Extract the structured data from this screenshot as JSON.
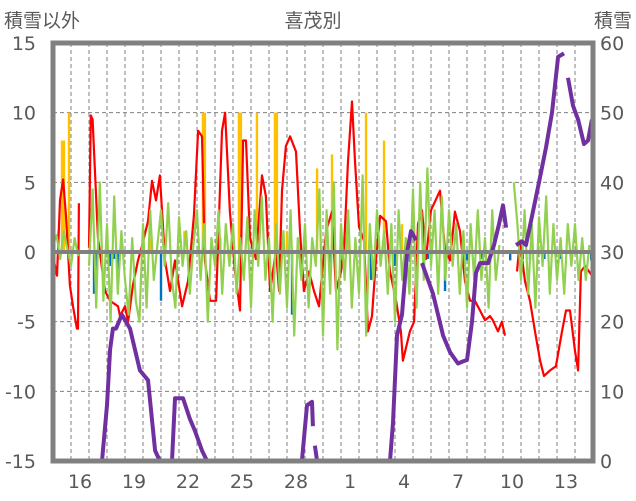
{
  "chart_data": {
    "type": "line",
    "title": "喜茂別",
    "ylabel_left": "積雪以外",
    "ylabel_right": "積雪",
    "ylim_left": [
      -15,
      15
    ],
    "ylim_right": [
      0,
      60
    ],
    "xlim_days": [
      0,
      30
    ],
    "yticks_left": [
      -15,
      -10,
      -5,
      0,
      5,
      10,
      15
    ],
    "yticks_right": [
      0,
      10,
      20,
      30,
      40,
      50,
      60
    ],
    "xtick_labels": [
      {
        "day": 1.5,
        "label": "16"
      },
      {
        "day": 4.5,
        "label": "19"
      },
      {
        "day": 7.5,
        "label": "22"
      },
      {
        "day": 10.5,
        "label": "25"
      },
      {
        "day": 13.5,
        "label": "28"
      },
      {
        "day": 16.5,
        "label": "1"
      },
      {
        "day": 19.5,
        "label": "4"
      },
      {
        "day": 22.5,
        "label": "7"
      },
      {
        "day": 25.5,
        "label": "10"
      },
      {
        "day": 28.5,
        "label": "13"
      }
    ],
    "grid": true,
    "colors": {
      "red": "#ff0000",
      "green": "#92d050",
      "purple": "#7030a0",
      "orange": "#ffc000",
      "blue": "#0070c0",
      "axis": "#808080",
      "text": "#595959"
    },
    "series": [
      {
        "name": "red",
        "axis": "left",
        "color": "#ff0000",
        "points": [
          [
            0,
            -0.3
          ],
          [
            0.22,
            -1.7
          ],
          [
            0.39,
            3.7
          ],
          [
            0.56,
            5.2
          ],
          [
            0.72,
            2.6
          ],
          [
            0.94,
            -2.4
          ],
          [
            1.11,
            -3.9
          ],
          [
            1.33,
            -5.5
          ],
          [
            1.39,
            -5.5
          ],
          [
            1.44,
            3.5
          ],
          [
            1.5,
            null
          ],
          [
            2.0,
            0.3
          ],
          [
            2.1,
            9.8
          ],
          [
            2.2,
            9.5
          ],
          [
            2.5,
            1.0
          ],
          [
            2.89,
            -2.8
          ],
          [
            3.17,
            -3.5
          ],
          [
            3.61,
            -3.9
          ],
          [
            3.72,
            -4.6
          ],
          [
            4.0,
            -3.9
          ],
          [
            4.17,
            -5.0
          ],
          [
            4.44,
            -2.4
          ],
          [
            4.72,
            -0.6
          ],
          [
            4.94,
            0.4
          ],
          [
            5.28,
            2.2
          ],
          [
            5.5,
            5.1
          ],
          [
            5.72,
            3.7
          ],
          [
            5.94,
            5.5
          ],
          [
            6.22,
            -0.6
          ],
          [
            6.5,
            -2.8
          ],
          [
            6.78,
            -0.6
          ],
          [
            7.17,
            -3.9
          ],
          [
            7.5,
            -2.1
          ],
          [
            7.83,
            2.6
          ],
          [
            8.06,
            8.7
          ],
          [
            8.28,
            8.3
          ],
          [
            8.44,
            -0.6
          ],
          [
            8.72,
            -3.5
          ],
          [
            9.06,
            -3.5
          ],
          [
            9.39,
            8.7
          ],
          [
            9.56,
            10.0
          ],
          [
            9.83,
            2.9
          ],
          [
            10.11,
            -1.4
          ],
          [
            10.39,
            -4.2
          ],
          [
            10.56,
            8.0
          ],
          [
            10.72,
            8.0
          ],
          [
            10.94,
            1.1
          ],
          [
            11.06,
            0.4
          ],
          [
            11.28,
            -0.5
          ],
          [
            11.61,
            5.5
          ],
          [
            11.83,
            4.0
          ],
          [
            12.06,
            -2.8
          ],
          [
            12.39,
            0.1
          ],
          [
            12.56,
            -2.8
          ],
          [
            12.72,
            4.4
          ],
          [
            12.94,
            7.6
          ],
          [
            13.17,
            8.3
          ],
          [
            13.5,
            7.2
          ],
          [
            13.72,
            1.5
          ],
          [
            13.94,
            -2.8
          ],
          [
            14.22,
            -1.4
          ],
          [
            14.5,
            -2.8
          ],
          [
            14.78,
            -3.9
          ],
          [
            15.17,
            1.5
          ],
          [
            15.5,
            2.9
          ],
          [
            15.72,
            -2.8
          ],
          [
            16.0,
            -1.4
          ],
          [
            16.17,
            0.4
          ],
          [
            16.39,
            6.5
          ],
          [
            16.61,
            10.8
          ],
          [
            16.78,
            6.5
          ],
          [
            17.0,
            1.8
          ],
          [
            17.28,
            0.8
          ],
          [
            17.5,
            -5.7
          ],
          [
            17.72,
            -4.6
          ],
          [
            17.94,
            -0.6
          ],
          [
            18.17,
            2.6
          ],
          [
            18.5,
            2.2
          ],
          [
            18.72,
            -1.4
          ],
          [
            19.06,
            -3.5
          ],
          [
            19.33,
            -5.7
          ],
          [
            19.44,
            -7.8
          ],
          [
            19.83,
            -5.7
          ],
          [
            20.06,
            -5.0
          ],
          [
            20.28,
            2.0
          ],
          [
            20.5,
            3.0
          ],
          [
            20.72,
            -0.5
          ],
          [
            21.0,
            3.0
          ],
          [
            21.5,
            4.4
          ],
          [
            21.78,
            0.1
          ],
          [
            22.06,
            -0.6
          ],
          [
            22.33,
            2.9
          ],
          [
            22.61,
            1.5
          ],
          [
            22.89,
            -2.1
          ],
          [
            23.17,
            -3.5
          ],
          [
            23.44,
            -3.5
          ],
          [
            23.72,
            -4.2
          ],
          [
            24.0,
            -4.9
          ],
          [
            24.28,
            -4.6
          ],
          [
            24.44,
            -4.9
          ],
          [
            24.72,
            -5.7
          ],
          [
            24.94,
            -5.0
          ],
          [
            25.11,
            -6.0
          ],
          [
            25.2,
            null
          ],
          [
            25.78,
            -1.4
          ],
          [
            25.94,
            0.8
          ],
          [
            26.22,
            -2.1
          ],
          [
            26.5,
            -3.5
          ],
          [
            26.78,
            -5.7
          ],
          [
            27.06,
            -7.8
          ],
          [
            27.28,
            -8.9
          ],
          [
            27.61,
            -8.5
          ],
          [
            27.94,
            -8.2
          ],
          [
            28.28,
            -5.7
          ],
          [
            28.5,
            -4.2
          ],
          [
            28.72,
            -4.2
          ],
          [
            29.0,
            -7.1
          ],
          [
            29.17,
            -8.5
          ],
          [
            29.33,
            -1.4
          ],
          [
            29.56,
            -1.0
          ],
          [
            30,
            -1.8
          ]
        ]
      },
      {
        "name": "green",
        "axis": "left",
        "color": "#92d050",
        "x_start": 0,
        "x_step": 0.2,
        "values": [
          0.5,
          1.2,
          -0.5,
          1.5,
          0.2,
          -1,
          1.0,
          -0.3,
          null,
          null,
          -1,
          4.5,
          -4,
          5,
          -3.5,
          2,
          -5,
          4,
          -3,
          1.5,
          -2,
          -4.5,
          1,
          -3.5,
          -5,
          2,
          -4,
          3,
          -2,
          0.5,
          3,
          -1,
          3.5,
          -2,
          -4,
          2.5,
          -1,
          1.5,
          -3,
          0.5,
          3,
          -2,
          2,
          -5,
          1,
          -1,
          3,
          -3,
          2,
          -1,
          2,
          -3,
          1,
          -2,
          2.5,
          -4,
          3,
          -1,
          4,
          -2,
          1,
          -5,
          2,
          -3,
          1.5,
          -4,
          3,
          -6,
          1,
          -2,
          2,
          -4,
          1,
          -1,
          4.5,
          -6,
          3,
          -3,
          5,
          -7,
          2,
          -2,
          3,
          -4,
          1,
          -3,
          5.5,
          -6,
          2,
          -2,
          3,
          -1,
          1.5,
          -3,
          2,
          -5,
          3,
          -2,
          1,
          -3,
          4.5,
          -4,
          5,
          -2,
          6,
          -1,
          3,
          -3,
          4,
          -2,
          3,
          -1,
          2,
          -3,
          1.5,
          -4,
          2,
          -2,
          3,
          -2,
          1,
          -4,
          3,
          -2,
          0.5,
          null,
          null,
          null,
          5,
          2,
          -2,
          3,
          -3,
          2,
          -4,
          2.5,
          -1,
          4,
          -3,
          2,
          -2,
          1,
          -3,
          2,
          -1,
          2,
          -2,
          1,
          -2,
          0.5
        ]
      },
      {
        "name": "snow-depth",
        "axis": "right",
        "color": "#7030a0",
        "points": [
          [
            0,
            0
          ],
          [
            1.5,
            0
          ],
          [
            1.5,
            null
          ],
          [
            1.94,
            0
          ],
          [
            2.72,
            0
          ],
          [
            3.0,
            8
          ],
          [
            3.17,
            16
          ],
          [
            3.33,
            19
          ],
          [
            3.5,
            19
          ],
          [
            3.83,
            21
          ],
          [
            4.28,
            19
          ],
          [
            4.83,
            13
          ],
          [
            5.28,
            11.6
          ],
          [
            5.67,
            1.5
          ],
          [
            5.94,
            0
          ],
          [
            6.61,
            0
          ],
          [
            6.78,
            9
          ],
          [
            7.22,
            9
          ],
          [
            7.61,
            6
          ],
          [
            7.89,
            4.3
          ],
          [
            8.28,
            1.5
          ],
          [
            8.56,
            0
          ],
          [
            13.83,
            0
          ],
          [
            14.11,
            8
          ],
          [
            14.39,
            8.5
          ],
          [
            14.44,
            5
          ],
          [
            14.5,
            null
          ],
          [
            14.55,
            2.2
          ],
          [
            14.67,
            0
          ],
          [
            18.72,
            0
          ],
          [
            18.89,
            5.5
          ],
          [
            19.11,
            18
          ],
          [
            19.39,
            21
          ],
          [
            19.67,
            30
          ],
          [
            19.89,
            33
          ],
          [
            20.17,
            31.7
          ],
          [
            20.3,
            null
          ],
          [
            20.5,
            28.4
          ],
          [
            21.11,
            24
          ],
          [
            21.67,
            18
          ],
          [
            22.06,
            15.6
          ],
          [
            22.5,
            14
          ],
          [
            22.78,
            14.3
          ],
          [
            23.0,
            14.5
          ],
          [
            23.28,
            20
          ],
          [
            23.5,
            27
          ],
          [
            23.72,
            28.4
          ],
          [
            24.17,
            28.4
          ],
          [
            24.5,
            31
          ],
          [
            24.78,
            34
          ],
          [
            25.0,
            36.7
          ],
          [
            25.17,
            33.5
          ],
          [
            25.3,
            null
          ],
          [
            25.72,
            31
          ],
          [
            26.06,
            31.5
          ],
          [
            26.28,
            31
          ],
          [
            26.6,
            35
          ],
          [
            27.0,
            40
          ],
          [
            27.39,
            45
          ],
          [
            27.72,
            50
          ],
          [
            28.06,
            58
          ],
          [
            28.39,
            58.5
          ],
          [
            28.45,
            null
          ],
          [
            28.61,
            55
          ],
          [
            28.89,
            51
          ],
          [
            29.17,
            49
          ],
          [
            29.5,
            45.5
          ],
          [
            29.72,
            46
          ],
          [
            29.94,
            49
          ]
        ]
      }
    ],
    "bars": [
      {
        "name": "orange",
        "color": "#ffc000",
        "points": [
          [
            0.5,
            8
          ],
          [
            0.61,
            8
          ],
          [
            0.89,
            10
          ],
          [
            8.33,
            10
          ],
          [
            8.44,
            10
          ],
          [
            10.33,
            10
          ],
          [
            10.44,
            10
          ],
          [
            11.33,
            10
          ],
          [
            12.33,
            10
          ],
          [
            12.44,
            10
          ],
          [
            14.67,
            6
          ],
          [
            15.5,
            7
          ],
          [
            17.39,
            10
          ],
          [
            18.39,
            8
          ],
          [
            19.39,
            2
          ],
          [
            0.3,
            1.5
          ],
          [
            5.4,
            1
          ],
          [
            7.3,
            1.5
          ],
          [
            9.3,
            1
          ],
          [
            13.0,
            1.5
          ],
          [
            16.4,
            1
          ],
          [
            20.6,
            0.5
          ],
          [
            24.5,
            0.6
          ]
        ]
      },
      {
        "name": "blue",
        "color": "#0070c0",
        "points": [
          [
            2.28,
            -3
          ],
          [
            2.39,
            -1.5
          ],
          [
            3.17,
            -1
          ],
          [
            3.39,
            -0.5
          ],
          [
            3.61,
            -2
          ],
          [
            6.0,
            -3.5
          ],
          [
            13.28,
            -4.5
          ],
          [
            15.39,
            -0.8
          ],
          [
            17.67,
            -2
          ],
          [
            18.67,
            -0.8
          ],
          [
            19.0,
            -1
          ],
          [
            19.83,
            -0.7
          ],
          [
            20.83,
            -0.5
          ],
          [
            21.78,
            -2.8
          ],
          [
            23.0,
            -0.6
          ],
          [
            23.8,
            -0.5
          ],
          [
            25.4,
            -0.6
          ],
          [
            26.1,
            -0.5
          ],
          [
            26.5,
            -0.6
          ],
          [
            27.3,
            -0.5
          ],
          [
            28.2,
            -0.5
          ],
          [
            29.9,
            -0.6
          ]
        ]
      }
    ]
  }
}
